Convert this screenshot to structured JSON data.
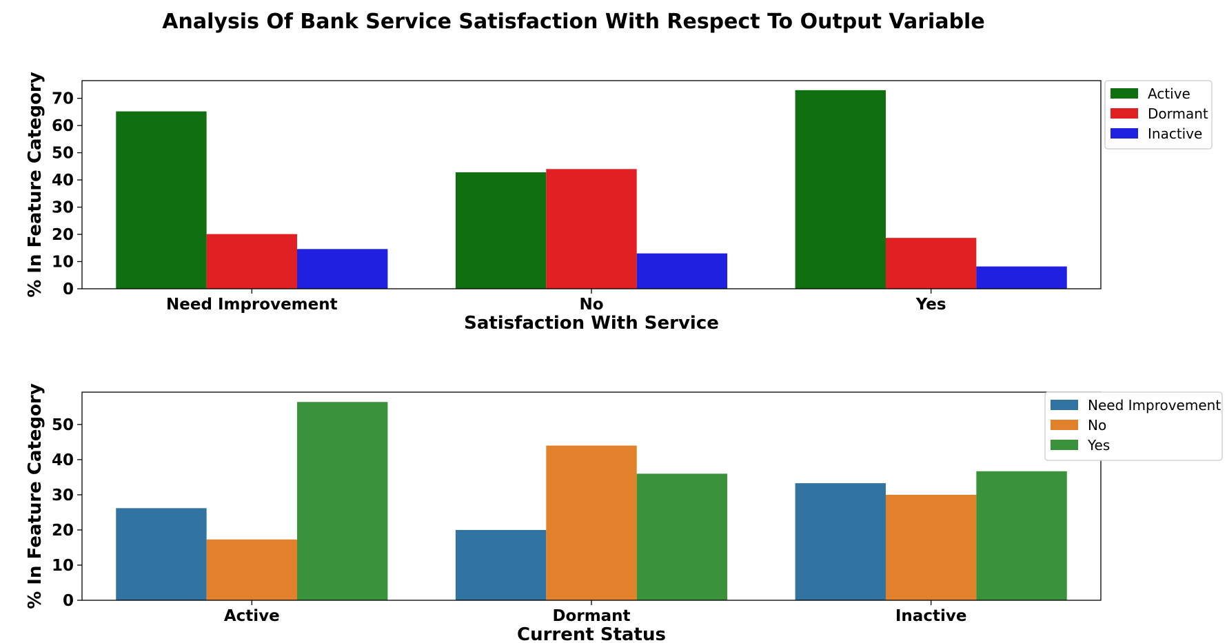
{
  "figure": {
    "title": "Analysis Of Bank Service Satisfaction With Respect To Output Variable"
  },
  "chart_data": [
    {
      "type": "bar",
      "xlabel": "Satisfaction With Service",
      "ylabel": "% In Feature Category",
      "categories": [
        "Need Improvement",
        "No",
        "Yes"
      ],
      "yticks": [
        0,
        10,
        20,
        30,
        40,
        50,
        60,
        70
      ],
      "ylim": [
        0,
        76.5
      ],
      "grid": false,
      "legend_placement": "outside right, top",
      "series": [
        {
          "name": "Active",
          "color": "#107010",
          "values": [
            65.2,
            42.8,
            73.0
          ]
        },
        {
          "name": "Dormant",
          "color": "#e02022",
          "values": [
            20.1,
            44.0,
            18.7
          ]
        },
        {
          "name": "Inactive",
          "color": "#2020e0",
          "values": [
            14.6,
            13.0,
            8.2
          ]
        }
      ]
    },
    {
      "type": "bar",
      "xlabel": "Current Status",
      "ylabel": "% In Feature Category",
      "categories": [
        "Active",
        "Dormant",
        "Inactive"
      ],
      "yticks": [
        0,
        10,
        20,
        30,
        40,
        50
      ],
      "ylim": [
        0,
        59.2
      ],
      "grid": false,
      "legend_placement": "outside right, top",
      "series": [
        {
          "name": "Need Improvement",
          "color": "#3274a1",
          "values": [
            26.2,
            20.0,
            33.3
          ]
        },
        {
          "name": "No",
          "color": "#e1812c",
          "values": [
            17.3,
            44.0,
            30.0
          ]
        },
        {
          "name": "Yes",
          "color": "#3a923a",
          "values": [
            56.4,
            36.0,
            36.7
          ]
        }
      ]
    }
  ]
}
